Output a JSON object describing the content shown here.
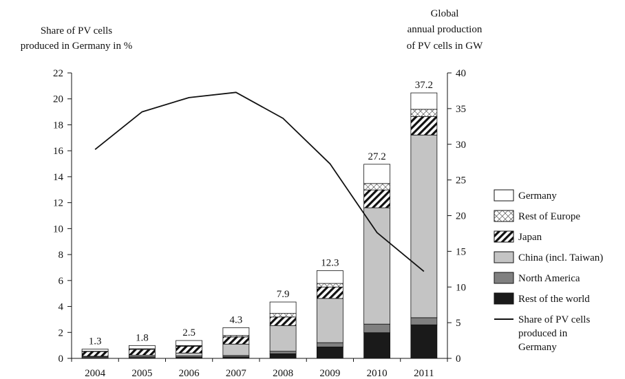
{
  "chart_data": {
    "type": "bar",
    "stacked": true,
    "left_axis_title": [
      "Share of PV cells",
      "produced in Germany in %"
    ],
    "right_axis_title": [
      "Global",
      "annual production",
      "of PV cells in GW"
    ],
    "categories": [
      "2004",
      "2005",
      "2006",
      "2007",
      "2008",
      "2009",
      "2010",
      "2011"
    ],
    "left_ylim": [
      0,
      22
    ],
    "left_ticks": [
      "0",
      "2",
      "4",
      "6",
      "8",
      "10",
      "12",
      "14",
      "16",
      "18",
      "20",
      "22"
    ],
    "right_ylim": [
      0,
      40
    ],
    "right_ticks": [
      "0",
      "5",
      "10",
      "15",
      "20",
      "25",
      "30",
      "35",
      "40"
    ],
    "totals": [
      "1.3",
      "1.8",
      "2.5",
      "4.3",
      "7.9",
      "12.3",
      "27.2",
      "37.2"
    ],
    "series": [
      {
        "name": "Rest of the world",
        "axis": "right",
        "fill": "#1a1a1a",
        "pattern": "solid",
        "values": [
          0.05,
          0.1,
          0.15,
          0.2,
          0.65,
          1.6,
          3.6,
          4.7
        ]
      },
      {
        "name": "North America",
        "axis": "right",
        "fill": "#808080",
        "pattern": "solid",
        "values": [
          0.15,
          0.15,
          0.2,
          0.2,
          0.35,
          0.6,
          1.2,
          1.0
        ]
      },
      {
        "name": "China (incl. Taiwan)",
        "axis": "right",
        "fill": "#c4c4c4",
        "pattern": "solid",
        "values": [
          0.1,
          0.2,
          0.4,
          1.6,
          3.6,
          6.2,
          16.3,
          25.6
        ]
      },
      {
        "name": "Japan",
        "axis": "right",
        "fill": "#ffffff",
        "pattern": "diagonal",
        "values": [
          0.65,
          0.8,
          0.95,
          1.0,
          1.2,
          1.6,
          2.5,
          2.6
        ]
      },
      {
        "name": "Rest of Europe",
        "axis": "right",
        "fill": "#ffffff",
        "pattern": "crosshatch",
        "values": [
          0.05,
          0.1,
          0.1,
          0.2,
          0.5,
          0.5,
          0.9,
          1.0
        ]
      },
      {
        "name": "Germany",
        "axis": "right",
        "fill": "#ffffff",
        "pattern": "solid",
        "values": [
          0.3,
          0.45,
          0.7,
          1.1,
          1.6,
          1.8,
          2.7,
          2.3
        ]
      }
    ],
    "line": {
      "name": "Share of PV cells produced in Germany",
      "axis": "left",
      "color": "#111111",
      "values": [
        16.1,
        19.0,
        20.1,
        20.5,
        18.5,
        15.0,
        9.7,
        6.7
      ]
    },
    "legend_order": [
      "Germany",
      "Rest of Europe",
      "Japan",
      "China (incl. Taiwan)",
      "North America",
      "Rest of the world"
    ],
    "line_legend_label": [
      "Share of PV cells",
      "produced in",
      "Germany"
    ],
    "legend_position": "right",
    "grid": false
  }
}
